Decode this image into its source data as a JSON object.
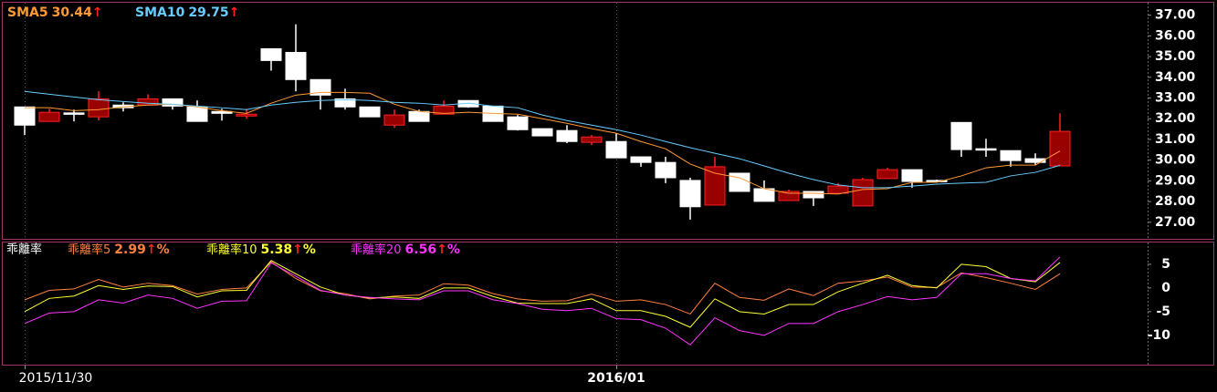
{
  "chart_data": [
    {
      "type": "candlestick",
      "categories": [
        "2015/11/30",
        null,
        null,
        null,
        null,
        null,
        null,
        null,
        null,
        null,
        null,
        null,
        null,
        null,
        null,
        null,
        null,
        null,
        null,
        null,
        null,
        null,
        null,
        null,
        "2016/01",
        null,
        null,
        null,
        null,
        null,
        null,
        null,
        null,
        null,
        null,
        null,
        null,
        null,
        null,
        null,
        null,
        null,
        null
      ],
      "open": [
        32.57,
        31.87,
        32.28,
        32.09,
        32.66,
        32.66,
        32.96,
        32.57,
        32.35,
        32.13,
        35.38,
        35.2,
        33.89,
        32.96,
        32.57,
        31.69,
        32.35,
        32.22,
        32.88,
        32.61,
        32.09,
        31.52,
        31.43,
        30.86,
        30.9,
        30.16,
        29.89,
        29.02,
        27.83,
        29.37,
        28.62,
        28.05,
        28.49,
        28.4,
        27.79,
        29.11,
        29.54,
        29.02,
        31.82,
        30.55,
        30.46,
        30.07,
        29.72
      ],
      "high": [
        32.57,
        32.48,
        32.44,
        33.32,
        32.79,
        33.18,
        32.96,
        32.88,
        32.48,
        32.48,
        35.38,
        36.56,
        33.89,
        33.45,
        32.57,
        32.44,
        32.44,
        32.88,
        32.88,
        32.61,
        32.18,
        31.52,
        31.69,
        31.21,
        31.3,
        30.16,
        30.16,
        29.15,
        30.16,
        29.37,
        29.02,
        28.58,
        28.49,
        28.89,
        29.15,
        29.63,
        29.54,
        29.06,
        31.82,
        31.03,
        30.46,
        30.33,
        32.26
      ],
      "low": [
        31.21,
        31.87,
        31.87,
        31.91,
        32.35,
        32.66,
        32.44,
        31.87,
        31.91,
        31.99,
        34.32,
        33.32,
        32.44,
        32.44,
        32.09,
        31.56,
        31.87,
        32.22,
        32.53,
        31.87,
        31.43,
        31.17,
        30.82,
        30.73,
        30.11,
        29.68,
        28.89,
        27.13,
        27.83,
        28.49,
        28.01,
        28.05,
        27.79,
        28.4,
        27.79,
        29.11,
        28.67,
        28.97,
        30.16,
        30.16,
        29.68,
        29.76,
        29.72
      ],
      "close": [
        31.69,
        32.31,
        32.24,
        32.96,
        32.53,
        32.96,
        32.61,
        31.87,
        32.26,
        32.22,
        34.81,
        33.89,
        33.14,
        32.57,
        32.09,
        32.18,
        31.87,
        32.61,
        32.57,
        31.87,
        31.47,
        31.17,
        30.9,
        31.12,
        30.11,
        29.89,
        29.15,
        27.75,
        29.68,
        28.49,
        28.01,
        28.49,
        28.18,
        28.75,
        29.06,
        29.54,
        28.97,
        28.97,
        30.51,
        30.51,
        29.98,
        29.89,
        31.39
      ],
      "up_color": "#990000",
      "down_color": "#ffffff",
      "series": [
        {
          "name": "SMA5",
          "color": "#ff9933",
          "values": [
            32.53,
            32.53,
            32.39,
            32.44,
            32.57,
            32.66,
            32.7,
            32.57,
            32.39,
            32.26,
            32.75,
            33.14,
            33.27,
            33.27,
            33.23,
            32.7,
            32.35,
            32.26,
            32.31,
            32.26,
            32.22,
            32.0,
            31.78,
            31.52,
            31.3,
            30.9,
            30.55,
            29.81,
            29.37,
            29.15,
            28.62,
            28.4,
            28.4,
            28.36,
            28.58,
            28.62,
            28.93,
            28.93,
            29.24,
            29.63,
            29.76,
            29.76,
            30.44
          ]
        },
        {
          "name": "SMA10",
          "color": "#66ccff",
          "values": [
            33.32,
            33.18,
            33.05,
            32.92,
            32.83,
            32.75,
            32.7,
            32.61,
            32.53,
            32.44,
            32.66,
            32.79,
            32.88,
            32.92,
            32.88,
            32.79,
            32.75,
            32.66,
            32.75,
            32.61,
            32.53,
            32.18,
            31.91,
            31.69,
            31.47,
            31.21,
            30.9,
            30.6,
            30.33,
            30.07,
            29.72,
            29.37,
            29.06,
            28.8,
            28.67,
            28.67,
            28.75,
            28.84,
            28.89,
            28.93,
            29.24,
            29.41,
            29.75
          ]
        }
      ],
      "trend_symbol": "↑",
      "ylim": [
        26.2,
        37.6
      ],
      "yticks": [
        {
          "value": 27,
          "label": "27.00"
        },
        {
          "value": 28,
          "label": "28.00"
        },
        {
          "value": 29,
          "label": "29.00"
        },
        {
          "value": 30,
          "label": "30.00"
        },
        {
          "value": 31,
          "label": "31.00"
        },
        {
          "value": 32,
          "label": "32.00"
        },
        {
          "value": 33,
          "label": "33.00"
        },
        {
          "value": 34,
          "label": "34.00"
        },
        {
          "value": 35,
          "label": "35.00"
        },
        {
          "value": 36,
          "label": "36.00"
        },
        {
          "value": 37,
          "label": "37.00"
        }
      ]
    },
    {
      "type": "line",
      "title": "乖離率",
      "series": [
        {
          "name": "乖離率5",
          "color": "#ff8040",
          "values": [
            -2.5,
            -0.5,
            -0.2,
            1.8,
            0.2,
            1,
            0.5,
            -1.3,
            -0.3,
            0,
            5.5,
            2,
            -0.6,
            -1.2,
            -2.3,
            -1.7,
            -1.5,
            0.9,
            0.6,
            -1.2,
            -2.3,
            -2.8,
            -2.7,
            -1.3,
            -2.8,
            -2.5,
            -3.5,
            -5.5,
            1,
            -2,
            -2.6,
            -0.2,
            -1.6,
            1,
            1.5,
            2.3,
            0.2,
            0.1,
            3.2,
            2.2,
            1,
            -0.3,
            2.99
          ]
        },
        {
          "name": "乖離率10",
          "color": "#ffff33",
          "values": [
            -5,
            -2.2,
            -1.7,
            0.5,
            -0.3,
            0.4,
            0.3,
            -1.9,
            -0.6,
            -0.5,
            5.8,
            3,
            0.2,
            -1.5,
            -2.1,
            -1.9,
            -2.2,
            0,
            0,
            -1.8,
            -3.2,
            -3.3,
            -3.3,
            -2.3,
            -4.8,
            -4.8,
            -6,
            -8.3,
            -2.3,
            -5,
            -5.5,
            -3.5,
            -3.5,
            -0.8,
            1,
            2.7,
            0.5,
            0,
            5,
            4.5,
            2,
            1.3,
            5.38
          ]
        },
        {
          "name": "乖離率20",
          "color": "#ff33ff",
          "values": [
            -7.5,
            -5.3,
            -5,
            -2.5,
            -3.2,
            -1.5,
            -2.2,
            -4.3,
            -2.8,
            -2.7,
            5.3,
            2.5,
            -0.5,
            -1.5,
            -2,
            -2.3,
            -2.5,
            -0.6,
            -0.6,
            -2.5,
            -3.3,
            -4.5,
            -4.8,
            -4.3,
            -6.5,
            -6.7,
            -8.5,
            -12,
            -6.3,
            -9,
            -10,
            -7.5,
            -7.5,
            -5,
            -3.5,
            -1.8,
            -2.5,
            -2,
            3,
            3,
            2,
            1.5,
            6.56
          ]
        }
      ],
      "trend_symbol": "↑",
      "suffix": "%",
      "ylim": [
        -16.2,
        9.8
      ],
      "yticks": [
        5,
        0,
        -5,
        -10
      ]
    }
  ]
}
